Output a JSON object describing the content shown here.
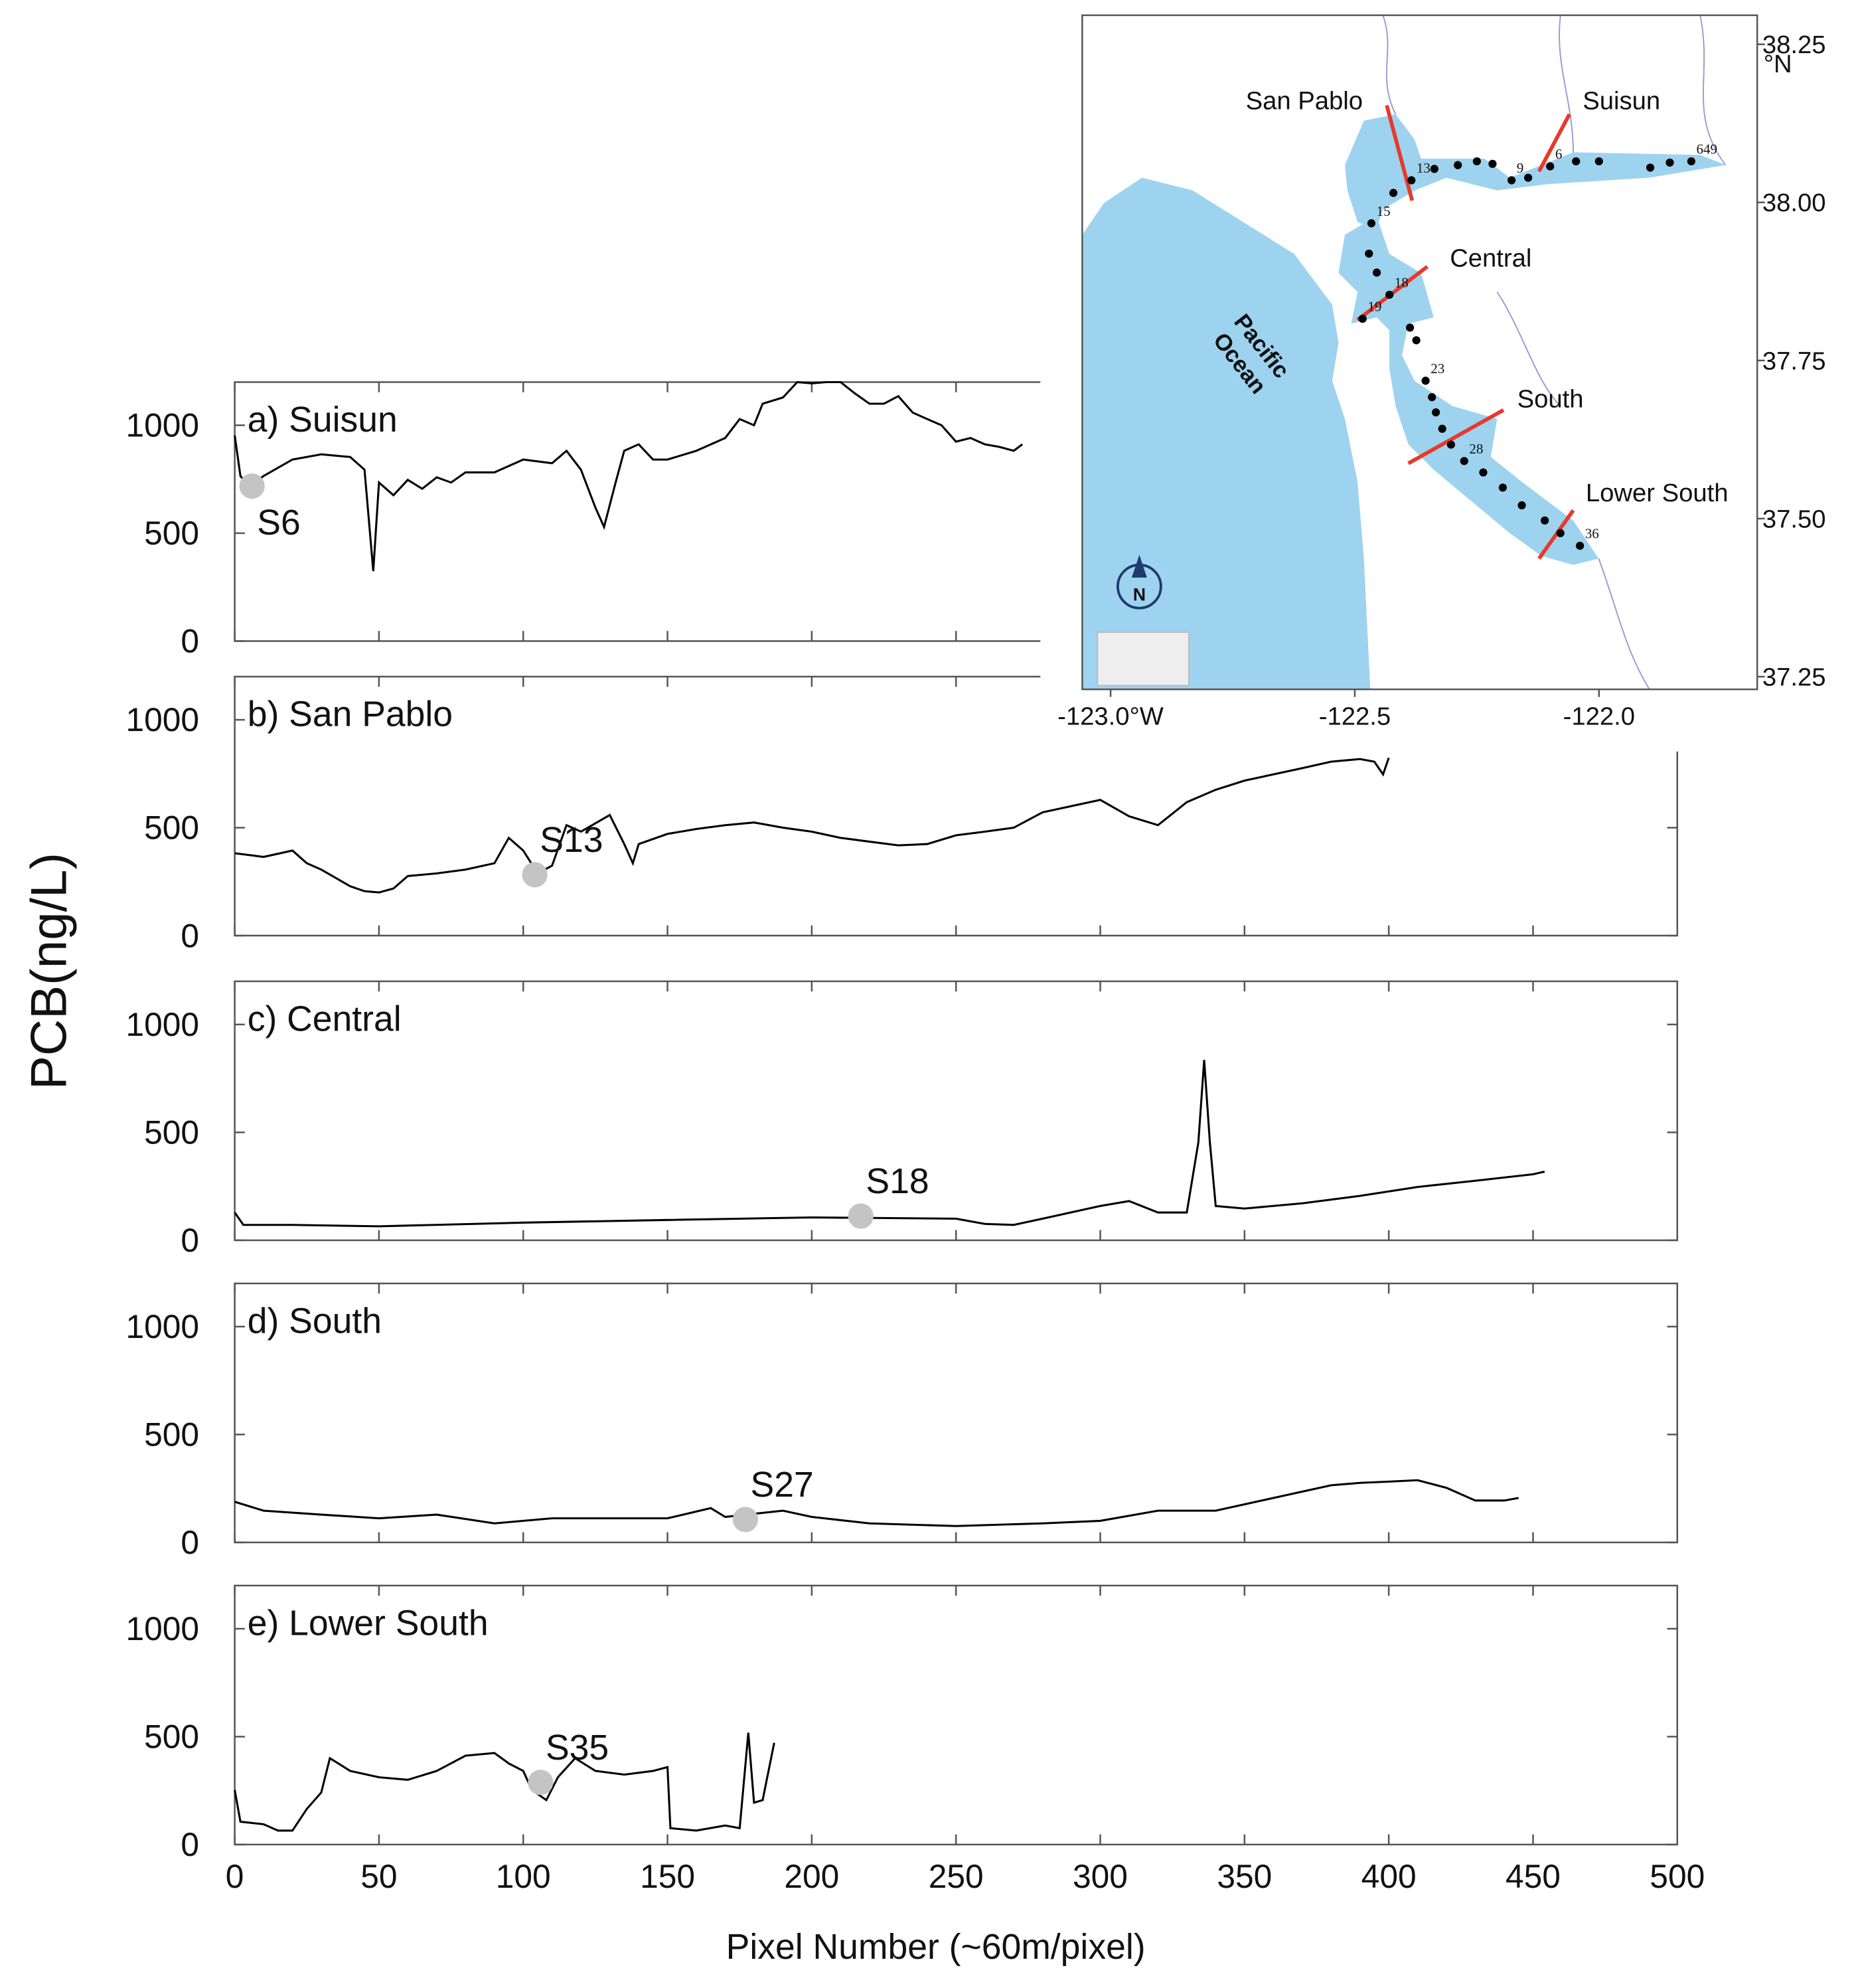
{
  "chart_data": [
    {
      "type": "line",
      "title": "a) Suisun",
      "color": "#000000",
      "xlim": [
        0,
        500
      ],
      "ylim": [
        0,
        1200
      ],
      "xticks": [
        0,
        50,
        100,
        150,
        200,
        250,
        300,
        350,
        400,
        450,
        500
      ],
      "yticks": [
        0,
        500,
        1000
      ],
      "x": [
        0,
        2,
        5,
        10,
        20,
        30,
        40,
        45,
        48,
        50,
        55,
        60,
        65,
        70,
        75,
        80,
        90,
        100,
        110,
        115,
        120,
        125,
        128,
        132,
        135,
        140,
        145,
        150,
        160,
        170,
        175,
        180,
        183,
        190,
        195,
        200,
        205,
        210,
        215,
        220,
        225,
        230,
        235,
        240,
        245,
        250,
        255,
        260,
        265,
        270,
        273
      ],
      "values": [
        953,
        765,
        718,
        765,
        841,
        865,
        853,
        794,
        324,
        735,
        676,
        747,
        706,
        759,
        735,
        782,
        782,
        841,
        824,
        882,
        794,
        618,
        529,
        735,
        882,
        912,
        841,
        841,
        882,
        941,
        1029,
        1000,
        1100,
        1129,
        1200,
        1194,
        1200,
        1200,
        1147,
        1100,
        1100,
        1135,
        1059,
        1029,
        1000,
        924,
        941,
        912,
        900,
        882,
        912
      ],
      "markers": [
        {
          "label": "S6",
          "x": 6,
          "value": 718
        }
      ],
      "marker_color": "#c4c4c4"
    },
    {
      "type": "line",
      "title": "b) San Pablo",
      "color": "#000000",
      "xlim": [
        0,
        500
      ],
      "ylim": [
        0,
        1200
      ],
      "xticks": [
        0,
        50,
        100,
        150,
        200,
        250,
        300,
        350,
        400,
        450,
        500
      ],
      "yticks": [
        0,
        500,
        1000
      ],
      "x": [
        0,
        10,
        20,
        25,
        30,
        40,
        45,
        50,
        55,
        60,
        70,
        80,
        90,
        95,
        100,
        105,
        110,
        115,
        120,
        130,
        135,
        138,
        140,
        150,
        160,
        170,
        180,
        190,
        200,
        210,
        220,
        230,
        240,
        250,
        260,
        270,
        280,
        290,
        300,
        310,
        320,
        330,
        340,
        350,
        360,
        370,
        380,
        390,
        395,
        398,
        400
      ],
      "values": [
        382,
        365,
        394,
        335,
        306,
        229,
        206,
        200,
        218,
        276,
        288,
        306,
        335,
        453,
        394,
        288,
        324,
        512,
        482,
        559,
        424,
        335,
        424,
        471,
        494,
        512,
        524,
        500,
        482,
        453,
        435,
        418,
        424,
        465,
        482,
        500,
        571,
        600,
        629,
        553,
        512,
        618,
        676,
        718,
        747,
        776,
        806,
        818,
        806,
        747,
        824
      ],
      "markers": [
        {
          "label": "S13",
          "x": 104,
          "value": 282
        }
      ],
      "marker_color": "#c4c4c4"
    },
    {
      "type": "line",
      "title": "c) Central",
      "ylabel": "PCB(ng/L)",
      "color": "#000000",
      "xlim": [
        0,
        500
      ],
      "ylim": [
        0,
        1200
      ],
      "xticks": [
        0,
        50,
        100,
        150,
        200,
        250,
        300,
        350,
        400,
        450,
        500
      ],
      "yticks": [
        0,
        500,
        1000
      ],
      "x": [
        0,
        3,
        20,
        50,
        100,
        150,
        200,
        250,
        260,
        270,
        280,
        300,
        310,
        320,
        330,
        334,
        336,
        338,
        340,
        350,
        370,
        390,
        410,
        430,
        450,
        454
      ],
      "values": [
        129,
        71,
        71,
        65,
        82,
        94,
        106,
        100,
        76,
        71,
        100,
        159,
        182,
        129,
        129,
        453,
        835,
        453,
        159,
        147,
        171,
        206,
        247,
        276,
        306,
        318
      ],
      "markers": [
        {
          "label": "S18",
          "x": 217,
          "value": 112
        }
      ],
      "marker_color": "#c4c4c4"
    },
    {
      "type": "line",
      "title": "d) South",
      "color": "#000000",
      "xlim": [
        0,
        500
      ],
      "ylim": [
        0,
        1200
      ],
      "xticks": [
        0,
        50,
        100,
        150,
        200,
        250,
        300,
        350,
        400,
        450,
        500
      ],
      "yticks": [
        0,
        500,
        1000
      ],
      "x": [
        0,
        10,
        30,
        50,
        70,
        90,
        110,
        130,
        150,
        165,
        170,
        190,
        200,
        220,
        250,
        280,
        300,
        320,
        340,
        360,
        380,
        390,
        400,
        410,
        420,
        430,
        440,
        445
      ],
      "values": [
        188,
        147,
        129,
        112,
        129,
        88,
        112,
        112,
        112,
        159,
        118,
        147,
        118,
        88,
        76,
        88,
        100,
        147,
        147,
        206,
        265,
        276,
        282,
        288,
        253,
        194,
        194,
        206
      ],
      "markers": [
        {
          "label": "S27",
          "x": 177,
          "value": 106
        }
      ],
      "marker_color": "#c4c4c4"
    },
    {
      "type": "line",
      "title": "e) Lower South",
      "xlabel": "Pixel Number (~60m/pixel)",
      "show_xtick_labels": true,
      "color": "#000000",
      "xlim": [
        0,
        500
      ],
      "ylim": [
        0,
        1200
      ],
      "xticks": [
        0,
        50,
        100,
        150,
        200,
        250,
        300,
        350,
        400,
        450,
        500
      ],
      "yticks": [
        0,
        500,
        1000
      ],
      "x": [
        0,
        2,
        10,
        15,
        20,
        25,
        30,
        33,
        40,
        50,
        60,
        70,
        80,
        90,
        95,
        100,
        103,
        108,
        112,
        118,
        125,
        135,
        145,
        150,
        151,
        160,
        170,
        175,
        178,
        180,
        183,
        187
      ],
      "values": [
        253,
        106,
        94,
        65,
        65,
        165,
        241,
        400,
        341,
        312,
        300,
        341,
        412,
        424,
        376,
        341,
        253,
        206,
        312,
        400,
        341,
        324,
        341,
        359,
        76,
        65,
        88,
        76,
        518,
        194,
        206,
        471
      ],
      "markers": [
        {
          "label": "S35",
          "x": 106,
          "value": 288
        }
      ],
      "marker_color": "#c4c4c4"
    },
    {
      "type": "map",
      "xlim": [
        -123.058,
        -121.676
      ],
      "ylim": [
        37.23,
        38.296
      ],
      "xticks": [
        {
          "value": -123,
          "label": "-123.0°W"
        },
        -122.5,
        {
          "value": -122,
          "label": "-122.0"
        }
      ],
      "yticks": [
        38.25,
        {
          "value": 38,
          "label": "38.00"
        },
        37.75,
        {
          "value": 37.5,
          "label": "37.50"
        },
        37.25
      ],
      "y_unit": "°N",
      "regions": [
        "San Pablo",
        "Suisun",
        "Central",
        "South",
        "Lower South"
      ],
      "ocean_label": [
        "Pacific",
        "Ocean"
      ],
      "north_label": "N",
      "water_color": "#9dd3ef",
      "station_color": "#000000",
      "boundary_color": "#e8392a",
      "stations": [
        {
          "lon": -122.421,
          "lat": 38.015,
          "label": null
        },
        {
          "lon": -122.384,
          "lat": 38.035,
          "label": "13"
        },
        {
          "lon": -122.337,
          "lat": 38.053,
          "label": null
        },
        {
          "lon": -122.289,
          "lat": 38.059,
          "label": null
        },
        {
          "lon": -122.25,
          "lat": 38.065,
          "label": null
        },
        {
          "lon": -122.218,
          "lat": 38.061,
          "label": null
        },
        {
          "lon": -122.179,
          "lat": 38.035,
          "label": "9"
        },
        {
          "lon": -122.145,
          "lat": 38.039,
          "label": null
        },
        {
          "lon": -122.1,
          "lat": 38.057,
          "label": "6"
        },
        {
          "lon": -122.047,
          "lat": 38.065,
          "label": null
        },
        {
          "lon": -122.0,
          "lat": 38.065,
          "label": null
        },
        {
          "lon": -121.895,
          "lat": 38.055,
          "label": null
        },
        {
          "lon": -121.855,
          "lat": 38.063,
          "label": null
        },
        {
          "lon": -121.811,
          "lat": 38.065,
          "label": "649"
        },
        {
          "lon": -122.466,
          "lat": 37.967,
          "label": "15"
        },
        {
          "lon": -122.471,
          "lat": 37.919,
          "label": null
        },
        {
          "lon": -122.455,
          "lat": 37.889,
          "label": null
        },
        {
          "lon": -122.429,
          "lat": 37.854,
          "label": "18"
        },
        {
          "lon": -122.484,
          "lat": 37.816,
          "label": "19"
        },
        {
          "lon": -122.387,
          "lat": 37.802,
          "label": null
        },
        {
          "lon": -122.374,
          "lat": 37.782,
          "label": null
        },
        {
          "lon": -122.355,
          "lat": 37.718,
          "label": "23"
        },
        {
          "lon": -122.342,
          "lat": 37.692,
          "label": null
        },
        {
          "lon": -122.334,
          "lat": 37.668,
          "label": null
        },
        {
          "lon": -122.321,
          "lat": 37.642,
          "label": null
        },
        {
          "lon": -122.303,
          "lat": 37.617,
          "label": null
        },
        {
          "lon": -122.276,
          "lat": 37.591,
          "label": "28"
        },
        {
          "lon": -122.237,
          "lat": 37.573,
          "label": null
        },
        {
          "lon": -122.197,
          "lat": 37.549,
          "label": null
        },
        {
          "lon": -122.158,
          "lat": 37.521,
          "label": null
        },
        {
          "lon": -122.111,
          "lat": 37.497,
          "label": null
        },
        {
          "lon": -122.079,
          "lat": 37.477,
          "label": null
        },
        {
          "lon": -122.039,
          "lat": 37.457,
          "label": "36"
        }
      ]
    }
  ]
}
